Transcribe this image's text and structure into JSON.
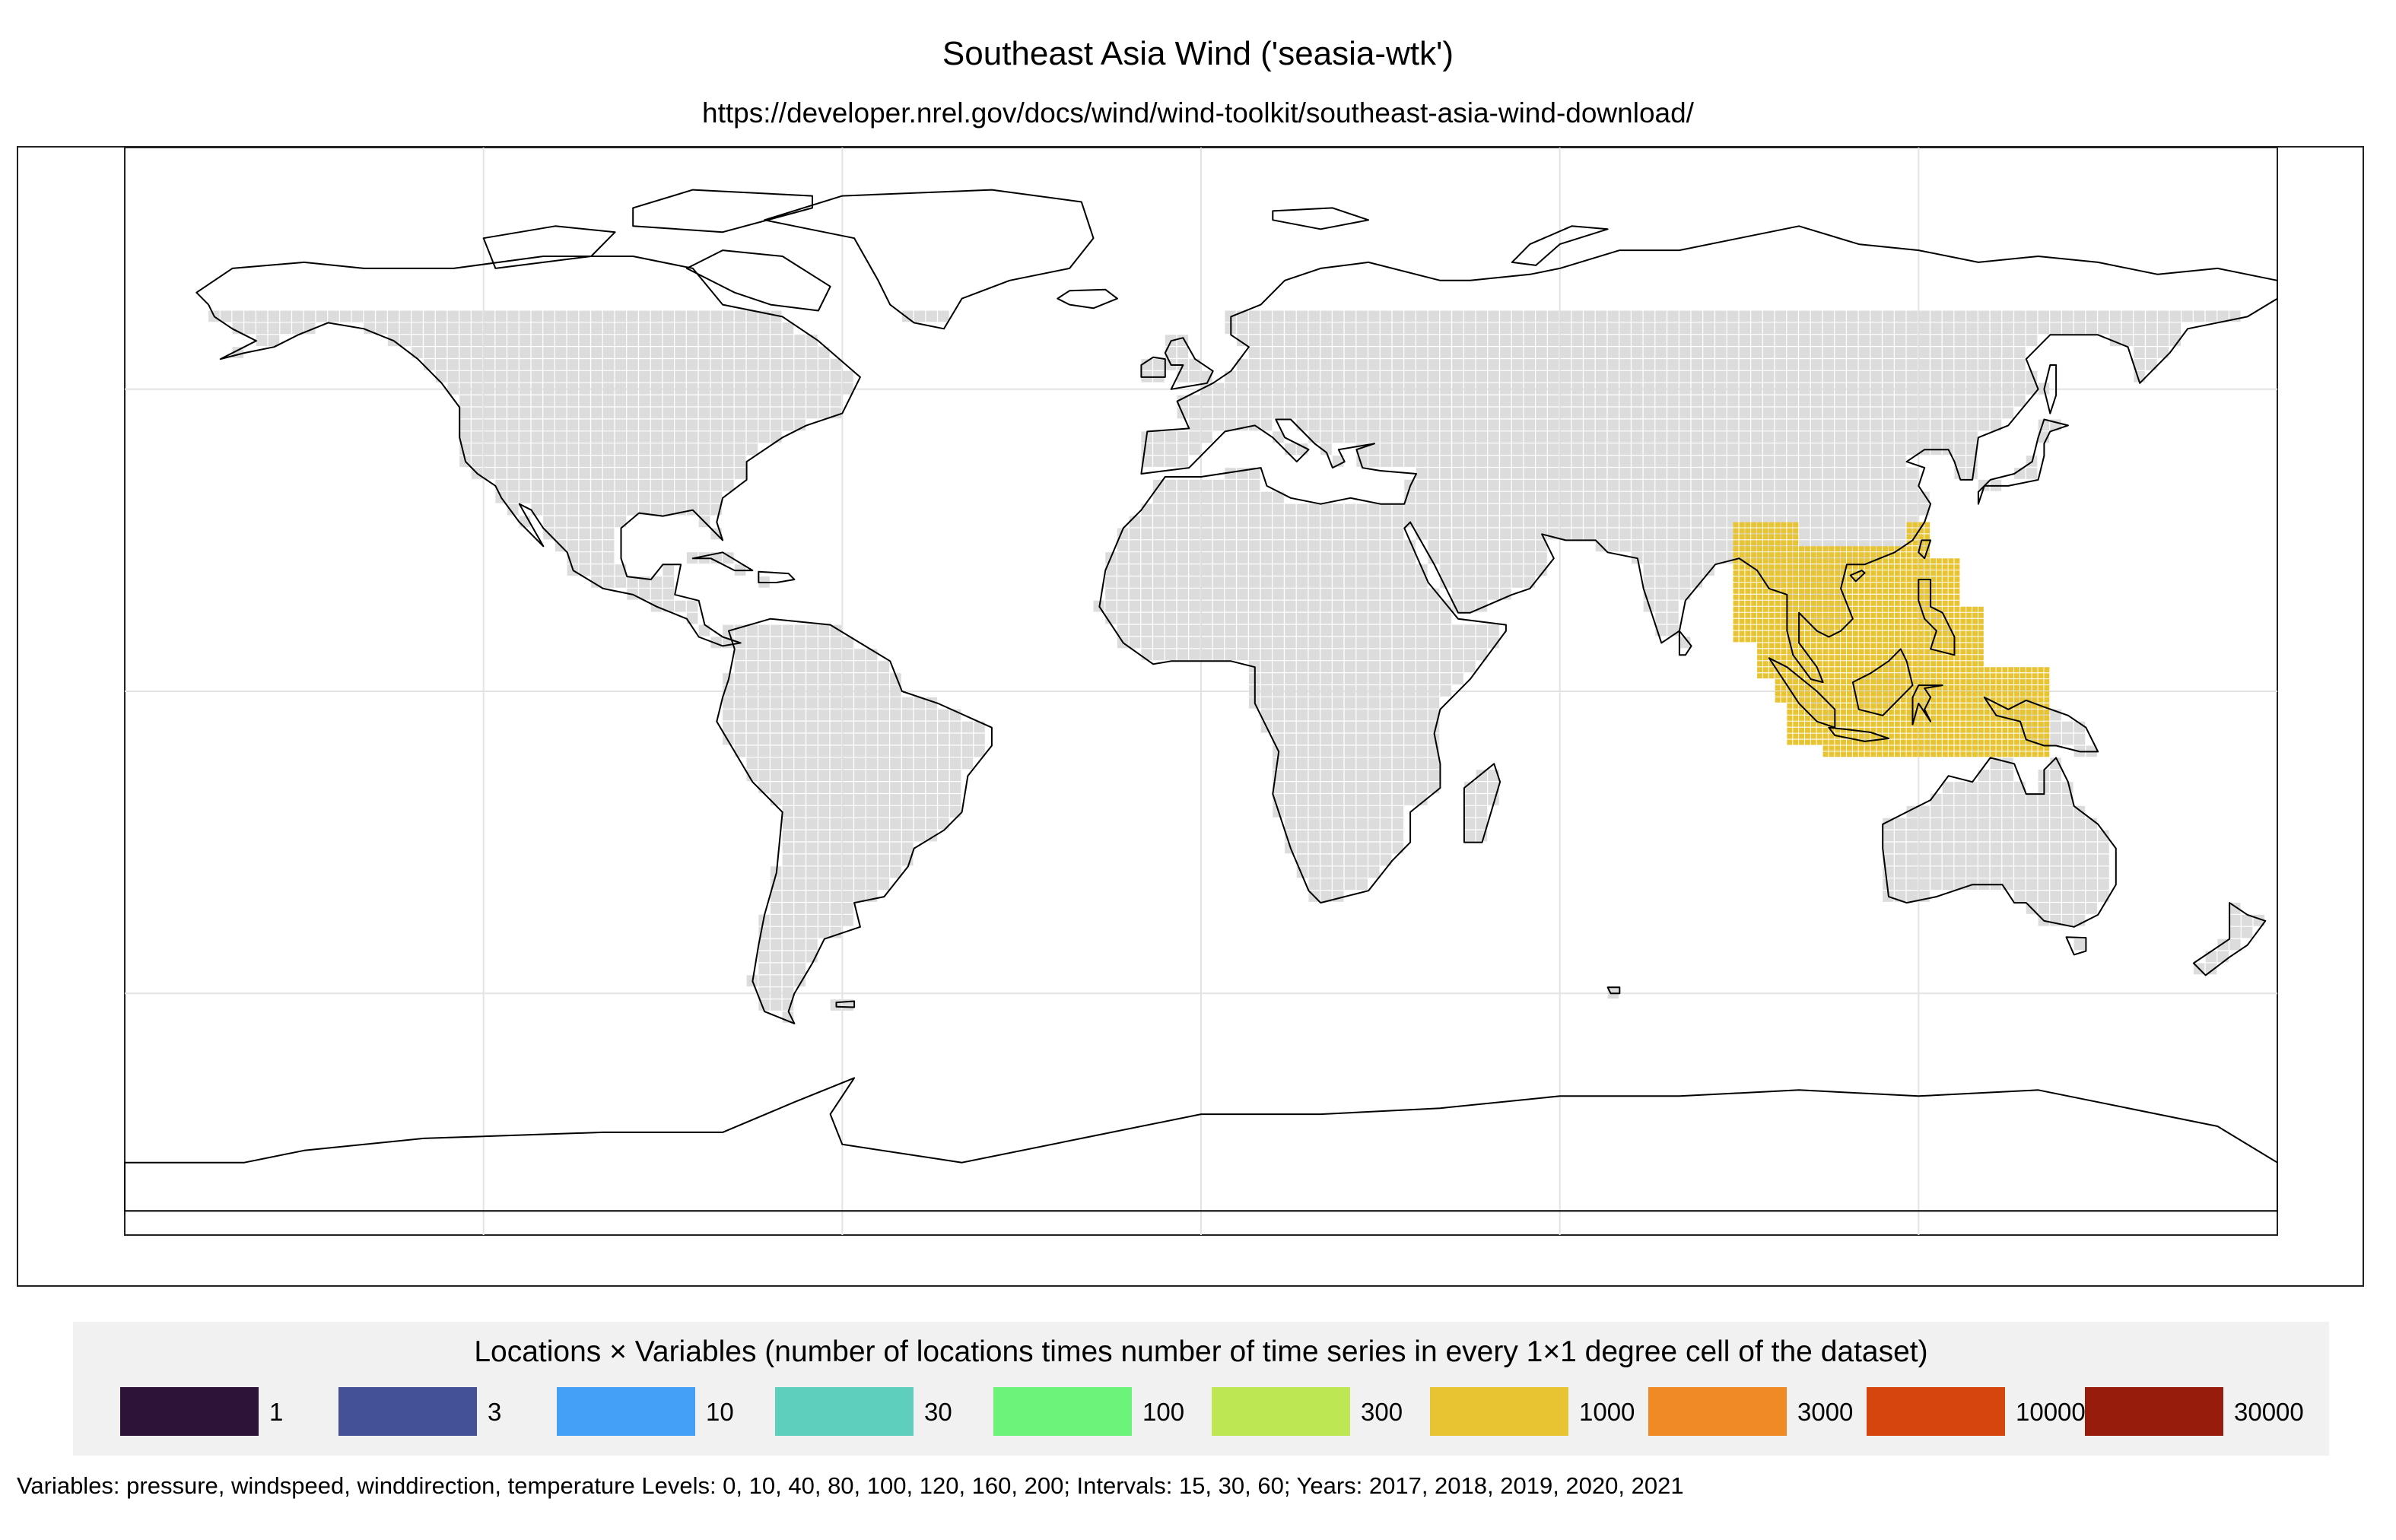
{
  "title": "Southeast Asia Wind ('seasia-wtk')",
  "subtitle": "https://developer.nrel.gov/docs/wind/wind-toolkit/southeast-asia-wind-download/",
  "map": {
    "projection": "equirectangular",
    "background_grid_color": "#dcdcdc",
    "coastline_color": "#000000",
    "data_extent": {
      "lon_range": [
        89,
        142
      ],
      "lat_range": [
        -10,
        28
      ],
      "dominant_bin": "1000",
      "dominant_color": "#e8c332"
    },
    "graticule_lon": [
      -120,
      -60,
      0,
      60,
      120
    ],
    "graticule_lat": [
      -50,
      0,
      50
    ]
  },
  "legend": {
    "title": "Locations × Variables (number of locations times number of time series in every 1×1 degree cell of the dataset)",
    "items": [
      {
        "label": "1",
        "color": "#2d1437"
      },
      {
        "label": "3",
        "color": "#455196"
      },
      {
        "label": "10",
        "color": "#44a0f4"
      },
      {
        "label": "30",
        "color": "#5ecfbd"
      },
      {
        "label": "100",
        "color": "#6cf47a"
      },
      {
        "label": "300",
        "color": "#bde853"
      },
      {
        "label": "1000",
        "color": "#e8c332"
      },
      {
        "label": "3000",
        "color": "#f08a24"
      },
      {
        "label": "10000",
        "color": "#d5460f"
      },
      {
        "label": "30000",
        "color": "#981c0b"
      }
    ]
  },
  "footer": "Variables: pressure, windspeed, winddirection, temperature Levels: 0, 10, 40, 80, 100, 120, 160, 200; Intervals: 15, 30, 60; Years: 2017, 2018, 2019, 2020, 2021"
}
